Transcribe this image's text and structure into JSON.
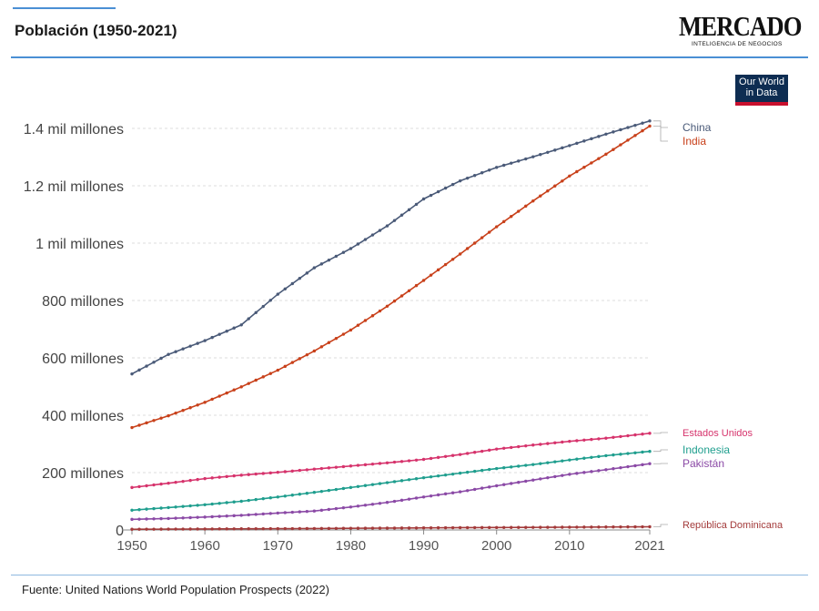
{
  "header": {
    "title": "Población (1950-2021)"
  },
  "brand": {
    "name": "MERCADO",
    "tagline": "INTELIGENCIA DE NEGOCIOS"
  },
  "badge": {
    "line1": "Our World",
    "line2": "in Data"
  },
  "footer": {
    "source": "Fuente: United Nations World Population Prospects (2022)"
  },
  "chart_data": {
    "type": "line",
    "title": "Población (1950-2021)",
    "xlabel": "",
    "ylabel": "",
    "xlim": [
      1948,
      2022
    ],
    "ylim": [
      0,
      1450000000
    ],
    "grid": "horizontal-dashed",
    "legend": "labels at right end of lines",
    "y_ticks": [
      {
        "value": 0,
        "label": "0"
      },
      {
        "value": 200000000,
        "label": "200 millones"
      },
      {
        "value": 400000000,
        "label": "400 millones"
      },
      {
        "value": 600000000,
        "label": "600 millones"
      },
      {
        "value": 800000000,
        "label": "800 millones"
      },
      {
        "value": 1000000000,
        "label": "1 mil millones"
      },
      {
        "value": 1200000000,
        "label": "1.2 mil millones"
      },
      {
        "value": 1400000000,
        "label": "1.4 mil millones"
      }
    ],
    "x_ticks": [
      {
        "value": 1950,
        "label": "1950"
      },
      {
        "value": 1960,
        "label": "1960"
      },
      {
        "value": 1970,
        "label": "1970"
      },
      {
        "value": 1980,
        "label": "1980"
      },
      {
        "value": 1990,
        "label": "1990"
      },
      {
        "value": 2000,
        "label": "2000"
      },
      {
        "value": 2010,
        "label": "2010"
      },
      {
        "value": 2021,
        "label": "2021"
      }
    ],
    "x": [
      1950,
      1955,
      1960,
      1965,
      1970,
      1975,
      1980,
      1985,
      1990,
      1995,
      2000,
      2005,
      2010,
      2015,
      2021
    ],
    "series": [
      {
        "name": "China",
        "color": "#4a5a78",
        "values": [
          544000000,
          612000000,
          660000000,
          715000000,
          822000000,
          914000000,
          981000000,
          1060000000,
          1154000000,
          1217000000,
          1264000000,
          1301000000,
          1340000000,
          1380000000,
          1426000000
        ]
      },
      {
        "name": "India",
        "color": "#c8401a",
        "values": [
          357000000,
          398000000,
          445000000,
          499000000,
          557000000,
          624000000,
          697000000,
          780000000,
          870000000,
          962000000,
          1057000000,
          1147000000,
          1234000000,
          1310000000,
          1408000000
        ]
      },
      {
        "name": "Estados Unidos",
        "color": "#d6336c",
        "values": [
          148000000,
          163000000,
          179000000,
          191000000,
          201000000,
          212000000,
          223000000,
          234000000,
          246000000,
          263000000,
          282000000,
          296000000,
          309000000,
          320000000,
          337000000
        ]
      },
      {
        "name": "Indonesia",
        "color": "#1f9e8e",
        "values": [
          69000000,
          78000000,
          88000000,
          100000000,
          115000000,
          131000000,
          148000000,
          165000000,
          182000000,
          198000000,
          214000000,
          228000000,
          244000000,
          259000000,
          274000000
        ]
      },
      {
        "name": "Pakistán",
        "color": "#8b4aa6",
        "values": [
          37000000,
          40000000,
          45000000,
          51000000,
          59000000,
          66000000,
          80000000,
          96000000,
          115000000,
          133000000,
          154000000,
          174000000,
          194000000,
          210000000,
          231000000
        ]
      },
      {
        "name": "República Dominicana",
        "color": "#a33a3a",
        "values": [
          2400000,
          2900000,
          3400000,
          4000000,
          4500000,
          5000000,
          5800000,
          6500000,
          7200000,
          8000000,
          8500000,
          9000000,
          9700000,
          10300000,
          11100000
        ]
      }
    ]
  }
}
